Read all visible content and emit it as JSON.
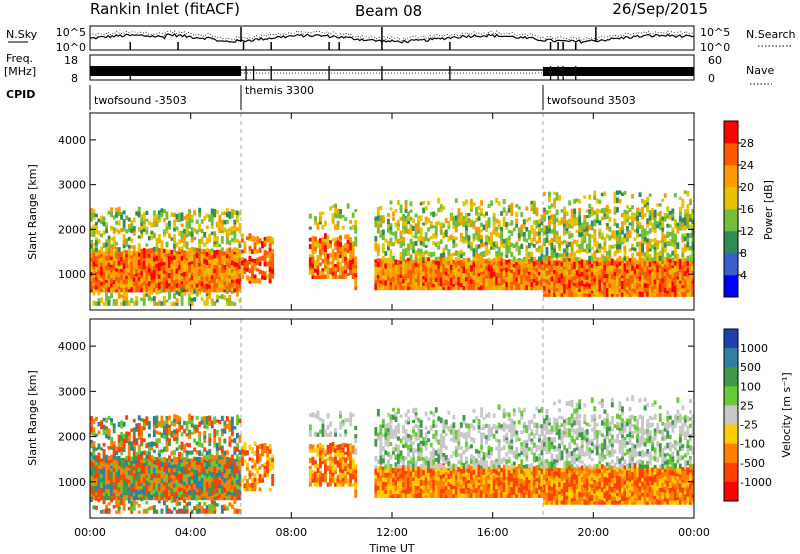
{
  "header": {
    "station": "Rankin Inlet (fitACF)",
    "beam": "Beam 08",
    "date": "26/Sep/2015"
  },
  "panels": {
    "nsky_label": "N.Sky",
    "nsky_ticks": [
      "10^5",
      "10^0"
    ],
    "nsearch_label": "N.Search",
    "nsearch_ticks": [
      "10^5",
      "10^0"
    ],
    "freq_label": "Freq.",
    "freq_unit": "[MHz]",
    "freq_ticks": [
      "18",
      "8"
    ],
    "nave_label": "Nave",
    "nave_ticks": [
      "60",
      "0"
    ],
    "cpid_label": "CPID",
    "cpid_segments": [
      {
        "label": "twofsound -3503",
        "start": 0,
        "end": 6
      },
      {
        "label": "themis 3300",
        "start": 6,
        "end": 18
      },
      {
        "label": "twofsound 3503",
        "start": 18,
        "end": 24
      }
    ]
  },
  "chart_data": [
    {
      "type": "heatmap",
      "name": "power",
      "ylabel": "Slant Range [km]",
      "ylim": [
        200,
        4600
      ],
      "yticks": [
        "1000",
        "2000",
        "3000",
        "4000"
      ],
      "xlim": [
        0,
        24
      ],
      "colorbar": {
        "label": "Power [dB]",
        "ticks": [
          "4",
          "8",
          "12",
          "16",
          "20",
          "24",
          "28"
        ],
        "colors": [
          "#0000ff",
          "#3a5fcd",
          "#2e8b57",
          "#6fbf3a",
          "#e5c300",
          "#ff9a00",
          "#ff5a00",
          "#ff0000"
        ]
      }
    },
    {
      "type": "heatmap",
      "name": "velocity",
      "ylabel": "Slant Range [km]",
      "ylim": [
        200,
        4600
      ],
      "yticks": [
        "1000",
        "2000",
        "3000",
        "4000"
      ],
      "xlim": [
        0,
        24
      ],
      "xlabel": "Time UT",
      "xticks": [
        "00:00",
        "04:00",
        "08:00",
        "12:00",
        "16:00",
        "20:00",
        "00:00"
      ],
      "colorbar": {
        "label": "Velocity [m s⁻¹]",
        "ticks": [
          "1000",
          "500",
          "100",
          "25",
          "-25",
          "-100",
          "-500",
          "-1000"
        ],
        "colors": [
          "#2040b0",
          "#2f7fa0",
          "#3e9a4a",
          "#66cc33",
          "#c8c8c8",
          "#ffcc00",
          "#ff8000",
          "#ff4000",
          "#ff0000"
        ]
      }
    }
  ]
}
